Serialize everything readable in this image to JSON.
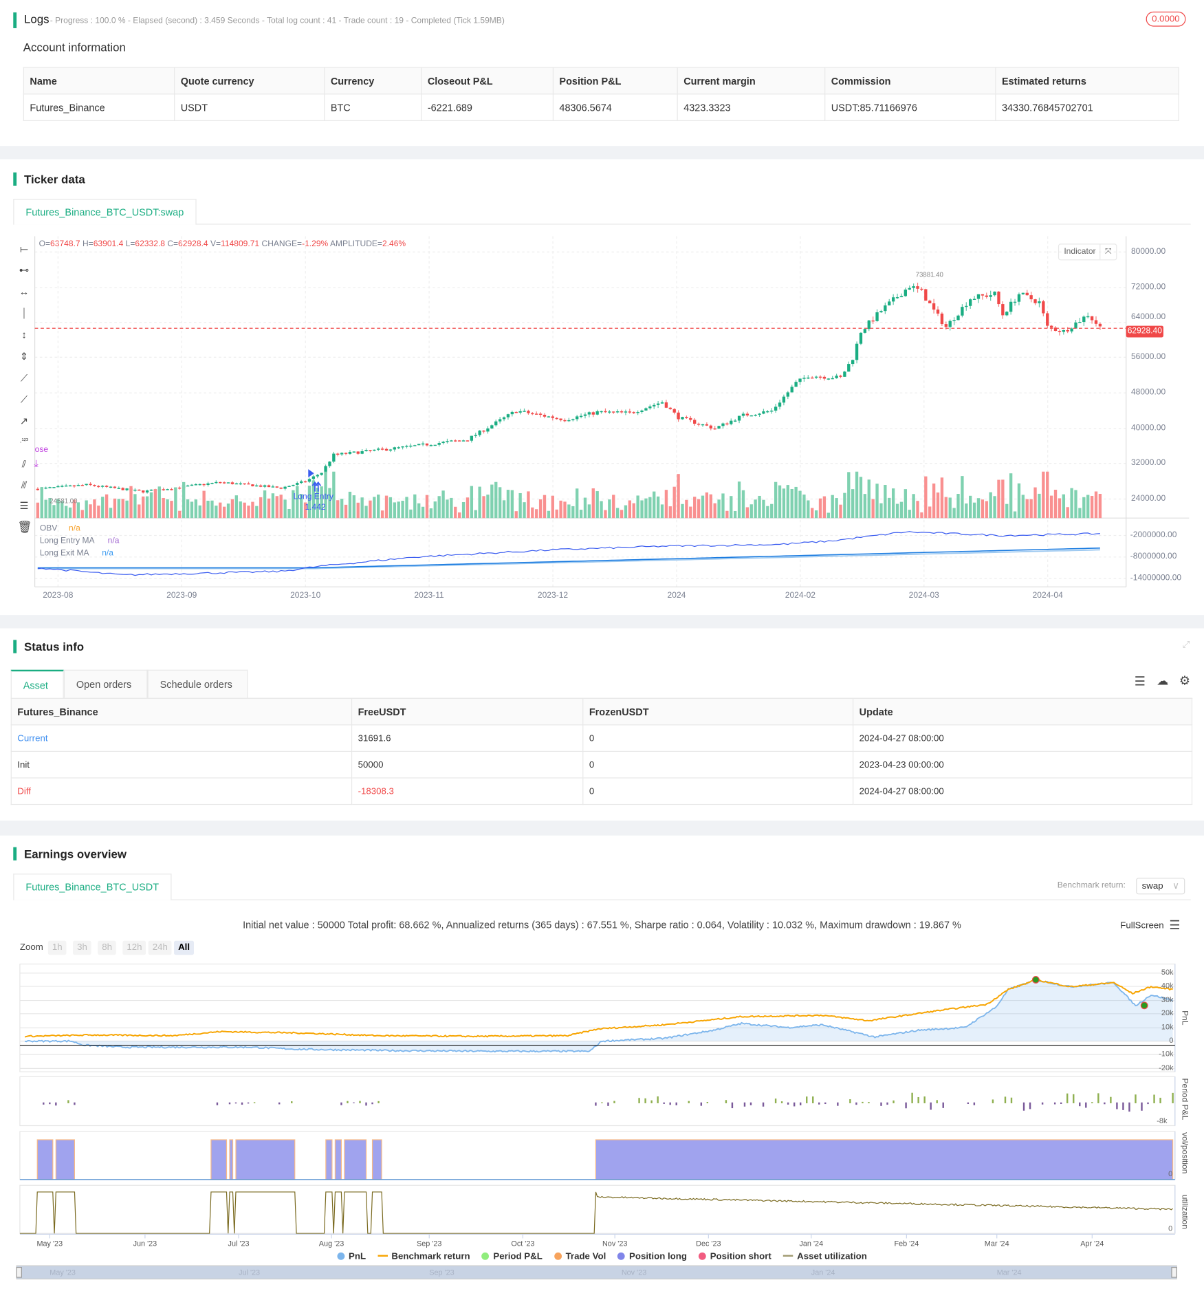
{
  "logs": {
    "title": "Logs",
    "summary": "- Progress : 100.0 % - Elapsed (second) : 3.459  Seconds - Total log count : 41 - Trade count : 19 - Completed (Tick 1.59MB)",
    "badge": "0.0000"
  },
  "account": {
    "title": "Account information",
    "headers": [
      "Name",
      "Quote currency",
      "Currency",
      "Closeout P&L",
      "Position P&L",
      "Current margin",
      "Commission",
      "Estimated returns"
    ],
    "row": [
      "Futures_Binance",
      "USDT",
      "BTC",
      "-6221.689",
      "48306.5674",
      "4323.3323",
      "USDT:85.71166976",
      "34330.76845702701"
    ]
  },
  "ticker": {
    "title": "Ticker data",
    "tab": "Futures_Binance_BTC_USDT:swap",
    "ohlc": {
      "o_label": "O=",
      "o": "63748.7",
      "h_label": "H=",
      "h": "63901.4",
      "l_label": "L=",
      "l": "62332.8",
      "c_label": "C=",
      "c": "62928.4",
      "v_label": "V=",
      "v": "114809.71",
      "change_label": "CHANGE=",
      "change": "-1.29%",
      "amp_label": "AMPLITUDE=",
      "amp": "2.46%"
    },
    "indicator_btn": "Indicator",
    "price_ticks": [
      "80000.00",
      "72000.00",
      "64000.00",
      "56000.00",
      "48000.00",
      "40000.00",
      "32000.00",
      "24000.00"
    ],
    "obv_ticks": [
      "-2000000.00",
      "-8000000.00",
      "-14000000.00"
    ],
    "date_ticks": [
      "2023-08",
      "2023-09",
      "2023-10",
      "2023-11",
      "2023-12",
      "2024",
      "2024-02",
      "2024-03",
      "2024-04"
    ],
    "last_price": "62928.40",
    "high_label": "73881.40",
    "low_label": "24581.00",
    "marker_close": "ose",
    "marker_entry": "Long Entry",
    "marker_entry2": "Long Entry",
    "marker_qty": "1.442",
    "legend": [
      {
        "name": "OBV",
        "value": "n/a",
        "color": "#f7a12a"
      },
      {
        "name": "Long Entry MA",
        "value": "n/a",
        "color": "#a066d0"
      },
      {
        "name": "Long Exit MA",
        "value": "n/a",
        "color": "#3f9cf0"
      }
    ],
    "colors": {
      "up": "#1aad82",
      "down": "#f04848",
      "obv": "#3a5cf0",
      "entry_ma": "#1a7be0",
      "exit_ma": "#9cc8f0"
    }
  },
  "chart_data": [
    {
      "type": "candlestick",
      "title": "Futures_Binance_BTC_USDT:swap",
      "ylim": [
        20000,
        82000
      ],
      "close_path": [
        [
          "2023-07-27",
          26300
        ],
        [
          "2023-08-08",
          27200
        ],
        [
          "2023-08-22",
          25700
        ],
        [
          "2023-09-10",
          27800
        ],
        [
          "2023-09-25",
          26500
        ],
        [
          "2023-10-01",
          28000
        ],
        [
          "2023-10-05",
          30000
        ],
        [
          "2023-10-08",
          34000
        ],
        [
          "2023-10-24",
          35600
        ],
        [
          "2023-11-10",
          37500
        ],
        [
          "2023-11-22",
          44000
        ],
        [
          "2023-12-04",
          42000
        ],
        [
          "2023-12-12",
          43700
        ],
        [
          "2023-12-20",
          43500
        ],
        [
          "2023-12-28",
          46000
        ],
        [
          "2024-01-01",
          42500
        ],
        [
          "2024-01-10",
          40000
        ],
        [
          "2024-01-17",
          43000
        ],
        [
          "2024-01-24",
          44000
        ],
        [
          "2024-01-30",
          50300
        ],
        [
          "2024-02-02",
          52000
        ],
        [
          "2024-02-10",
          51500
        ],
        [
          "2024-02-13",
          56000
        ],
        [
          "2024-02-15",
          62000
        ],
        [
          "2024-02-20",
          66700
        ],
        [
          "2024-02-27",
          72300
        ],
        [
          "2024-03-01",
          71000
        ],
        [
          "2024-03-04",
          66700
        ],
        [
          "2024-03-07",
          63000
        ],
        [
          "2024-03-13",
          69500
        ],
        [
          "2024-03-19",
          70500
        ],
        [
          "2024-03-21",
          65800
        ],
        [
          "2024-03-25",
          70500
        ],
        [
          "2024-03-30",
          68600
        ],
        [
          "2024-04-01",
          63000
        ],
        [
          "2024-04-05",
          62000
        ],
        [
          "2024-04-11",
          65800
        ],
        [
          "2024-04-14",
          62928.4
        ]
      ],
      "obv_millions": [
        [
          "2023-07-27",
          -11
        ],
        [
          "2023-08-17",
          -13
        ],
        [
          "2023-09-25",
          -12
        ],
        [
          "2023-10-05",
          -10.5
        ],
        [
          "2023-10-28",
          -8
        ],
        [
          "2023-12-01",
          -6
        ],
        [
          "2023-12-28",
          -5
        ],
        [
          "2024-01-26",
          -4.5
        ],
        [
          "2024-02-08",
          -3.5
        ],
        [
          "2024-02-26",
          -1
        ],
        [
          "2024-03-21",
          -2
        ],
        [
          "2024-04-14",
          -1.5
        ]
      ],
      "entry_ma_millions": [
        [
          "2023-07-27",
          -11
        ],
        [
          "2023-10-03",
          -11
        ],
        [
          "2024-04-14",
          -5.5
        ]
      ],
      "exit_ma_millions": [
        [
          "2023-07-27",
          -11.2
        ],
        [
          "2023-10-03",
          -11.2
        ],
        [
          "2024-04-14",
          -6
        ]
      ]
    },
    {
      "type": "line",
      "title": "",
      "series": [
        {
          "name": "PnL",
          "unit": "k",
          "values": [
            [
              "2023-04-23",
              0
            ],
            [
              "2023-05-08",
              0
            ],
            [
              "2023-05-12",
              -3
            ],
            [
              "2023-05-25",
              -4.5
            ],
            [
              "2023-07-05",
              -4.5
            ],
            [
              "2023-07-20",
              -6
            ],
            [
              "2023-08-20",
              -7
            ],
            [
              "2023-09-20",
              -7.5
            ],
            [
              "2023-10-22",
              -7.5
            ],
            [
              "2023-10-26",
              0
            ],
            [
              "2023-11-15",
              2
            ],
            [
              "2023-12-01",
              8
            ],
            [
              "2023-12-10",
              13
            ],
            [
              "2023-12-25",
              10
            ],
            [
              "2024-01-05",
              12
            ],
            [
              "2024-01-22",
              3
            ],
            [
              "2024-02-05",
              8
            ],
            [
              "2024-02-20",
              10
            ],
            [
              "2024-03-01",
              25
            ],
            [
              "2024-03-05",
              38
            ],
            [
              "2024-03-14",
              45
            ],
            [
              "2024-03-25",
              40
            ],
            [
              "2024-04-08",
              43
            ],
            [
              "2024-04-15",
              26
            ],
            [
              "2024-04-20",
              34
            ],
            [
              "2024-04-27",
              30
            ]
          ]
        },
        {
          "name": "Benchmark return",
          "unit": "k",
          "values": [
            [
              "2023-04-23",
              3.5
            ],
            [
              "2023-05-15",
              4.5
            ],
            [
              "2023-06-10",
              4
            ],
            [
              "2023-06-25",
              7
            ],
            [
              "2023-07-20",
              6
            ],
            [
              "2023-08-15",
              4
            ],
            [
              "2023-09-15",
              3.5
            ],
            [
              "2023-10-15",
              4
            ],
            [
              "2023-10-25",
              9
            ],
            [
              "2023-11-15",
              12
            ],
            [
              "2023-12-10",
              18
            ],
            [
              "2024-01-05",
              19
            ],
            [
              "2024-01-20",
              15
            ],
            [
              "2024-02-10",
              22
            ],
            [
              "2024-02-27",
              27
            ],
            [
              "2024-03-05",
              38
            ],
            [
              "2024-03-14",
              45
            ],
            [
              "2024-03-25",
              40
            ],
            [
              "2024-04-08",
              43
            ],
            [
              "2024-04-14",
              35
            ],
            [
              "2024-04-20",
              40
            ],
            [
              "2024-04-27",
              38
            ]
          ]
        }
      ],
      "position_long_ranges": [
        [
          "2023-04-27",
          "2023-05-02"
        ],
        [
          "2023-05-03",
          "2023-05-09"
        ],
        [
          "2023-06-22",
          "2023-06-27"
        ],
        [
          "2023-06-28",
          "2023-06-29"
        ],
        [
          "2023-06-30",
          "2023-07-19"
        ],
        [
          "2023-07-29",
          "2023-07-31"
        ],
        [
          "2023-08-01",
          "2023-08-03"
        ],
        [
          "2023-08-04",
          "2023-08-11"
        ],
        [
          "2023-08-13",
          "2023-08-16"
        ],
        [
          "2023-10-24",
          "2024-04-27"
        ]
      ],
      "pnl_ticks": [
        "50k",
        "40k",
        "30k",
        "20k",
        "10k",
        "0",
        "-10k",
        "-20k"
      ],
      "period_tick": "-8k",
      "vol_tick": "0",
      "util_tick": "0"
    }
  ],
  "status": {
    "title": "Status info",
    "tabs": [
      "Asset",
      "Open orders",
      "Schedule orders"
    ],
    "headers": [
      "Futures_Binance",
      "FreeUSDT",
      "FrozenUSDT",
      "Update"
    ],
    "rows": [
      [
        "Current",
        "31691.6",
        "0",
        "2024-04-27 08:00:00"
      ],
      [
        "Init",
        "50000",
        "0",
        "2023-04-23 00:00:00"
      ],
      [
        "Diff",
        "-18308.3",
        "0",
        "2024-04-27 08:00:00"
      ]
    ]
  },
  "earnings": {
    "title": "Earnings overview",
    "tab": "Futures_Binance_BTC_USDT",
    "benchmark_label": "Benchmark return:",
    "benchmark_value": "swap",
    "summary": "Initial net value : 50000 Total profit: 68.662 %, Annualized returns (365 days) : 67.551 %, Sharpe ratio : 0.064, Volatility : 10.032 %, Maximum drawdown : 19.867 %",
    "fullscreen": "FullScreen",
    "zoom_label": "Zoom",
    "zoom_opts": [
      "1h",
      "3h",
      "8h",
      "12h",
      "24h",
      "All"
    ],
    "axis_titles": [
      "PnL",
      "Period P&L",
      "vol/position",
      "utilization"
    ],
    "date_ticks": [
      "May '23",
      "Jun '23",
      "Jul '23",
      "Aug '23",
      "Sep '23",
      "Oct '23",
      "Nov '23",
      "Dec '23",
      "Jan '24",
      "Feb '24",
      "Mar '24",
      "Apr '24"
    ],
    "nav_ticks": [
      "May '23",
      "Jul '23",
      "Sep '23",
      "Nov '23",
      "Jan '24",
      "Mar '24"
    ],
    "legend": [
      {
        "name": "PnL",
        "color": "#7cb5ec"
      },
      {
        "name": "Benchmark return",
        "color": "#f7a400"
      },
      {
        "name": "Period P&L",
        "color": "#90ed7d"
      },
      {
        "name": "Trade Vol",
        "color": "#f7a35c"
      },
      {
        "name": "Position long",
        "color": "#8085e9"
      },
      {
        "name": "Position short",
        "color": "#f15c80"
      },
      {
        "name": "Asset utilization",
        "color": "#a09a70"
      }
    ]
  }
}
